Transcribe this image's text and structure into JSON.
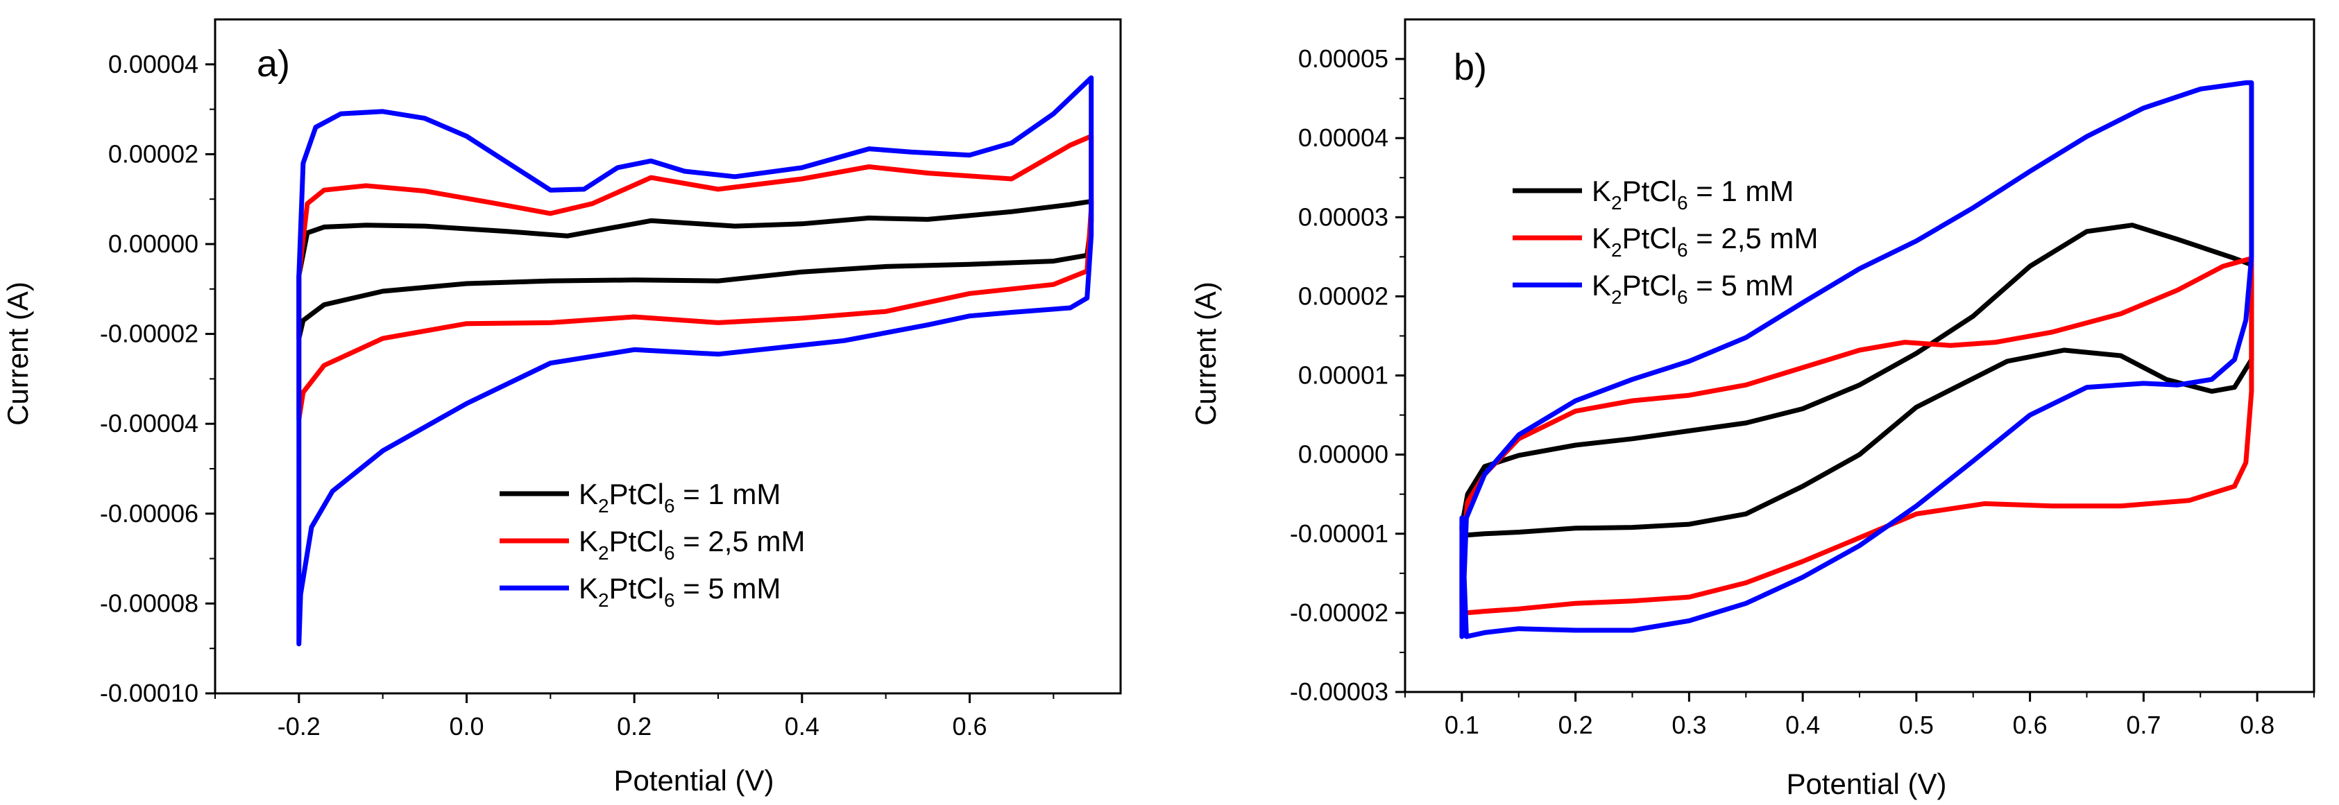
{
  "chart_data": [
    {
      "type": "line",
      "panel_label": "a)",
      "xlabel": "Potential (V)",
      "ylabel": "Current (A)",
      "xlim": [
        -0.3,
        0.78
      ],
      "ylim": [
        -0.0001,
        5e-05
      ],
      "xticks": [
        -0.2,
        0.0,
        0.2,
        0.4,
        0.6
      ],
      "xtick_labels": [
        "-0.2",
        "0.0",
        "0.2",
        "0.4",
        "0.6"
      ],
      "yticks": [
        -0.0001,
        -8e-05,
        -6e-05,
        -4e-05,
        -2e-05,
        0.0,
        2e-05,
        4e-05
      ],
      "ytick_labels": [
        "-0.00010",
        "-0.00008",
        "-0.00006",
        "-0.00004",
        "-0.00002",
        "0.00000",
        "0.00002",
        "0.00004"
      ],
      "legend_position": "lower-right",
      "series": [
        {
          "name": "K2PtCl6 = 1 mM",
          "legend_parts": [
            "K",
            "2",
            "PtCl",
            "6",
            " = 1 mM"
          ],
          "color": "#000000",
          "x": [
            -0.2,
            -0.19,
            -0.17,
            -0.12,
            -0.05,
            0.05,
            0.12,
            0.22,
            0.32,
            0.4,
            0.48,
            0.55,
            0.65,
            0.72,
            0.745,
            0.745,
            0.74,
            0.7,
            0.6,
            0.5,
            0.4,
            0.3,
            0.2,
            0.1,
            0.0,
            -0.1,
            -0.17,
            -0.195,
            -0.2
          ],
          "y": [
            -7e-06,
            2.5e-06,
            3.8e-06,
            4.2e-06,
            4e-06,
            2.8e-06,
            1.8e-06,
            5.2e-06,
            4e-06,
            4.5e-06,
            5.8e-06,
            5.5e-06,
            7.2e-06,
            8.8e-06,
            9.5e-06,
            5e-06,
            -2.5e-06,
            -3.8e-06,
            -4.5e-06,
            -5e-06,
            -6.2e-06,
            -8.2e-06,
            -8e-06,
            -8.2e-06,
            -8.8e-06,
            -1.05e-05,
            -1.35e-05,
            -1.7e-05,
            -2.1e-05
          ]
        },
        {
          "name": "K2PtCl6 = 2,5 mM",
          "legend_parts": [
            "K",
            "2",
            "PtCl",
            "6",
            " = 2,5 mM"
          ],
          "color": "#ff0000",
          "x": [
            -0.2,
            -0.19,
            -0.17,
            -0.12,
            -0.05,
            0.03,
            0.1,
            0.15,
            0.22,
            0.3,
            0.4,
            0.48,
            0.55,
            0.65,
            0.72,
            0.745,
            0.745,
            0.74,
            0.7,
            0.6,
            0.5,
            0.4,
            0.3,
            0.2,
            0.1,
            0.0,
            -0.1,
            -0.17,
            -0.195,
            -0.2
          ],
          "y": [
            -7e-06,
            9e-06,
            1.2e-05,
            1.3e-05,
            1.18e-05,
            9.2e-06,
            6.8e-06,
            9e-06,
            1.48e-05,
            1.22e-05,
            1.45e-05,
            1.72e-05,
            1.58e-05,
            1.45e-05,
            2.2e-05,
            2.4e-05,
            8e-06,
            -6e-06,
            -9e-06,
            -1.1e-05,
            -1.5e-05,
            -1.65e-05,
            -1.75e-05,
            -1.62e-05,
            -1.75e-05,
            -1.77e-05,
            -2.1e-05,
            -2.7e-05,
            -3.3e-05,
            -3.9e-05
          ]
        },
        {
          "name": "K2PtCl6 = 5 mM",
          "legend_parts": [
            "K",
            "2",
            "PtCl",
            "6",
            " = 5 mM"
          ],
          "color": "#0000ff",
          "x": [
            -0.2,
            -0.195,
            -0.18,
            -0.15,
            -0.1,
            -0.05,
            0.0,
            0.05,
            0.1,
            0.14,
            0.18,
            0.22,
            0.26,
            0.32,
            0.4,
            0.48,
            0.53,
            0.6,
            0.65,
            0.7,
            0.745,
            0.745,
            0.74,
            0.72,
            0.65,
            0.6,
            0.55,
            0.45,
            0.3,
            0.2,
            0.1,
            0.0,
            -0.1,
            -0.16,
            -0.185,
            -0.198,
            -0.2
          ],
          "y": [
            -7e-06,
            1.8e-05,
            2.6e-05,
            2.9e-05,
            2.95e-05,
            2.8e-05,
            2.4e-05,
            1.8e-05,
            1.2e-05,
            1.22e-05,
            1.7e-05,
            1.85e-05,
            1.62e-05,
            1.5e-05,
            1.7e-05,
            2.12e-05,
            2.05e-05,
            1.98e-05,
            2.25e-05,
            2.9e-05,
            3.7e-05,
            2e-06,
            -1.2e-05,
            -1.42e-05,
            -1.52e-05,
            -1.6e-05,
            -1.8e-05,
            -2.15e-05,
            -2.45e-05,
            -2.35e-05,
            -2.65e-05,
            -3.55e-05,
            -4.6e-05,
            -5.5e-05,
            -6.3e-05,
            -7.8e-05,
            -8.9e-05
          ]
        }
      ]
    },
    {
      "type": "line",
      "panel_label": "b)",
      "xlabel": "Potential (V)",
      "ylabel": "Current (A)",
      "xlim": [
        0.05,
        0.85
      ],
      "ylim": [
        -3e-05,
        5.5e-05
      ],
      "xticks": [
        0.1,
        0.2,
        0.3,
        0.4,
        0.5,
        0.6,
        0.7,
        0.8
      ],
      "xtick_labels": [
        "0.1",
        "0.2",
        "0.3",
        "0.4",
        "0.5",
        "0.6",
        "0.7",
        "0.8"
      ],
      "yticks": [
        -3e-05,
        -2e-05,
        -1e-05,
        0.0,
        1e-05,
        2e-05,
        3e-05,
        4e-05,
        5e-05
      ],
      "ytick_labels": [
        "-0.00003",
        "-0.00002",
        "-0.00001",
        "0.00000",
        "0.00001",
        "0.00002",
        "0.00003",
        "0.00004",
        "0.00005"
      ],
      "legend_position": "upper-left",
      "series": [
        {
          "name": "K2PtCl6 = 1 mM",
          "legend_parts": [
            "K",
            "2",
            "PtCl",
            "6",
            " = 1 mM"
          ],
          "color": "#000000",
          "x": [
            0.1,
            0.105,
            0.12,
            0.15,
            0.2,
            0.25,
            0.3,
            0.35,
            0.4,
            0.45,
            0.5,
            0.55,
            0.6,
            0.65,
            0.69,
            0.73,
            0.78,
            0.795,
            0.795,
            0.78,
            0.76,
            0.72,
            0.68,
            0.63,
            0.58,
            0.5,
            0.45,
            0.4,
            0.35,
            0.3,
            0.25,
            0.2,
            0.15,
            0.12,
            0.102,
            0.1
          ],
          "y": [
            -9e-06,
            -5e-06,
            -1.5e-06,
            -1e-07,
            1.2e-06,
            2e-06,
            3e-06,
            4e-06,
            5.8e-06,
            8.8e-06,
            1.28e-05,
            1.75e-05,
            2.38e-05,
            2.82e-05,
            2.9e-05,
            2.72e-05,
            2.48e-05,
            2.4e-05,
            1.2e-05,
            8.5e-06,
            8e-06,
            9.5e-06,
            1.25e-05,
            1.32e-05,
            1.18e-05,
            6e-06,
            0.0,
            -4e-06,
            -7.5e-06,
            -8.8e-06,
            -9.2e-06,
            -9.3e-06,
            -9.8e-06,
            -1e-05,
            -1.02e-05,
            -9.5e-06
          ]
        },
        {
          "name": "K2PtCl6 = 2,5 mM",
          "legend_parts": [
            "K",
            "2",
            "PtCl",
            "6",
            " = 2,5 mM"
          ],
          "color": "#ff0000",
          "x": [
            0.1,
            0.105,
            0.12,
            0.15,
            0.2,
            0.25,
            0.3,
            0.35,
            0.4,
            0.45,
            0.49,
            0.53,
            0.57,
            0.62,
            0.68,
            0.73,
            0.77,
            0.795,
            0.795,
            0.79,
            0.78,
            0.74,
            0.68,
            0.62,
            0.56,
            0.5,
            0.45,
            0.4,
            0.35,
            0.3,
            0.25,
            0.2,
            0.15,
            0.12,
            0.104,
            0.1
          ],
          "y": [
            -1.3e-05,
            -6e-06,
            -2.5e-06,
            2e-06,
            5.5e-06,
            6.8e-06,
            7.5e-06,
            8.8e-06,
            1.1e-05,
            1.32e-05,
            1.42e-05,
            1.38e-05,
            1.42e-05,
            1.55e-05,
            1.78e-05,
            2.08e-05,
            2.38e-05,
            2.48e-05,
            8e-06,
            -1e-06,
            -4e-06,
            -5.8e-06,
            -6.5e-06,
            -6.5e-06,
            -6.2e-06,
            -7.5e-06,
            -1.05e-05,
            -1.35e-05,
            -1.62e-05,
            -1.8e-05,
            -1.85e-05,
            -1.88e-05,
            -1.95e-05,
            -1.98e-05,
            -2e-05,
            -1.9e-05
          ]
        },
        {
          "name": "K2PtCl6 = 5 mM",
          "legend_parts": [
            "K",
            "2",
            "PtCl",
            "6",
            " = 5 mM"
          ],
          "color": "#0000ff",
          "x": [
            0.1,
            0.104,
            0.12,
            0.15,
            0.2,
            0.25,
            0.3,
            0.35,
            0.4,
            0.45,
            0.5,
            0.55,
            0.6,
            0.65,
            0.7,
            0.75,
            0.79,
            0.795,
            0.795,
            0.79,
            0.78,
            0.76,
            0.73,
            0.7,
            0.65,
            0.6,
            0.55,
            0.5,
            0.45,
            0.4,
            0.35,
            0.3,
            0.25,
            0.2,
            0.15,
            0.12,
            0.104,
            0.1
          ],
          "y": [
            -2.3e-05,
            -8e-06,
            -2.5e-06,
            2.5e-06,
            6.8e-06,
            9.5e-06,
            1.18e-05,
            1.48e-05,
            1.92e-05,
            2.35e-05,
            2.7e-05,
            3.12e-05,
            3.58e-05,
            4.02e-05,
            4.38e-05,
            4.62e-05,
            4.7e-05,
            4.7e-05,
            2.5e-05,
            1.7e-05,
            1.2e-05,
            9.5e-06,
            8.8e-06,
            9e-06,
            8.5e-06,
            5e-06,
            -8e-07,
            -6.5e-06,
            -1.15e-05,
            -1.55e-05,
            -1.88e-05,
            -2.1e-05,
            -2.22e-05,
            -2.22e-05,
            -2.2e-05,
            -2.25e-05,
            -2.3e-05,
            -8e-06
          ]
        }
      ]
    }
  ]
}
